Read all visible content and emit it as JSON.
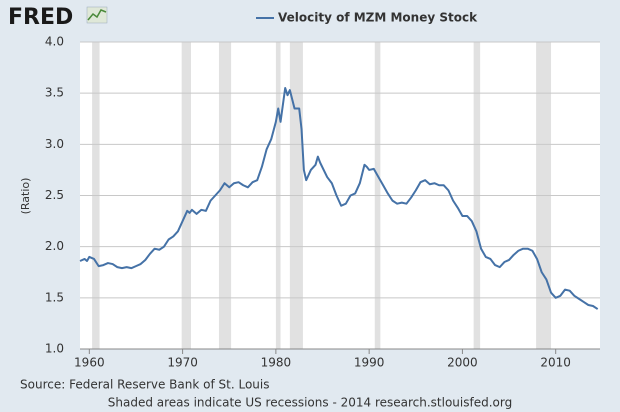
{
  "chart_data": {
    "type": "line",
    "logo": "FRED",
    "ylabel": "(Ratio)",
    "notes": [
      "Source: Federal Reserve Bank of St. Louis",
      "Shaded areas indicate US recessions - 2014 research.stlouisfed.org"
    ],
    "x": [
      1959.0,
      1959.5,
      1959.75,
      1960.0,
      1960.5,
      1961.0,
      1961.5,
      1962.0,
      1962.5,
      1963.0,
      1963.5,
      1964.0,
      1964.5,
      1965.0,
      1965.5,
      1966.0,
      1966.5,
      1967.0,
      1967.5,
      1968.0,
      1968.5,
      1969.0,
      1969.5,
      1970.0,
      1970.5,
      1970.75,
      1971.0,
      1971.5,
      1972.0,
      1972.5,
      1973.0,
      1973.5,
      1974.0,
      1974.5,
      1975.0,
      1975.5,
      1976.0,
      1976.5,
      1977.0,
      1977.5,
      1978.0,
      1978.5,
      1979.0,
      1979.5,
      1980.0,
      1980.25,
      1980.5,
      1981.0,
      1981.25,
      1981.5,
      1982.0,
      1982.5,
      1982.75,
      1983.0,
      1983.25,
      1983.75,
      1984.25,
      1984.5,
      1984.75,
      1985.5,
      1986.0,
      1986.5,
      1987.0,
      1987.5,
      1988.0,
      1988.5,
      1989.0,
      1989.5,
      1989.75,
      1990.0,
      1990.5,
      1991.0,
      1991.5,
      1992.0,
      1992.5,
      1993.0,
      1993.5,
      1994.0,
      1994.5,
      1995.0,
      1995.5,
      1996.0,
      1996.5,
      1997.0,
      1997.5,
      1998.0,
      1998.5,
      1999.0,
      1999.5,
      2000.0,
      2000.5,
      2001.0,
      2001.5,
      2002.0,
      2002.5,
      2003.0,
      2003.5,
      2004.0,
      2004.5,
      2005.0,
      2005.5,
      2006.0,
      2006.5,
      2007.0,
      2007.5,
      2008.0,
      2008.5,
      2009.0,
      2009.5,
      2010.0,
      2010.5,
      2011.0,
      2011.5,
      2012.0,
      2012.5,
      2013.0,
      2013.5,
      2014.0,
      2014.5
    ],
    "series": [
      {
        "name": "Velocity of MZM Money Stock",
        "color": "#4572a7",
        "values": [
          1.86,
          1.88,
          1.86,
          1.9,
          1.88,
          1.81,
          1.82,
          1.84,
          1.83,
          1.8,
          1.79,
          1.8,
          1.79,
          1.81,
          1.83,
          1.87,
          1.93,
          1.98,
          1.97,
          2.0,
          2.07,
          2.1,
          2.15,
          2.25,
          2.35,
          2.33,
          2.36,
          2.32,
          2.36,
          2.35,
          2.45,
          2.5,
          2.55,
          2.62,
          2.58,
          2.62,
          2.63,
          2.6,
          2.58,
          2.63,
          2.65,
          2.78,
          2.95,
          3.05,
          3.22,
          3.35,
          3.22,
          3.55,
          3.48,
          3.53,
          3.35,
          3.35,
          3.15,
          2.75,
          2.65,
          2.75,
          2.8,
          2.88,
          2.82,
          2.68,
          2.62,
          2.5,
          2.4,
          2.42,
          2.5,
          2.52,
          2.62,
          2.8,
          2.78,
          2.75,
          2.76,
          2.68,
          2.6,
          2.52,
          2.45,
          2.42,
          2.43,
          2.42,
          2.48,
          2.55,
          2.63,
          2.65,
          2.61,
          2.62,
          2.6,
          2.6,
          2.55,
          2.45,
          2.38,
          2.3,
          2.3,
          2.25,
          2.15,
          1.98,
          1.9,
          1.88,
          1.82,
          1.8,
          1.85,
          1.87,
          1.92,
          1.96,
          1.98,
          1.98,
          1.96,
          1.88,
          1.75,
          1.68,
          1.55,
          1.5,
          1.52,
          1.58,
          1.57,
          1.52,
          1.49,
          1.46,
          1.43,
          1.42,
          1.39
        ]
      }
    ],
    "recessions": [
      [
        1960.3,
        1961.1
      ],
      [
        1969.9,
        1970.9
      ],
      [
        1973.9,
        1975.2
      ],
      [
        1980.0,
        1980.5
      ],
      [
        1981.5,
        1982.9
      ],
      [
        1990.6,
        1991.2
      ],
      [
        2001.2,
        2001.9
      ],
      [
        2007.9,
        2009.5
      ]
    ],
    "recession_color": "#e1e1e1",
    "xlim": [
      1959,
      2014.75
    ],
    "xticks": [
      1960,
      1970,
      1980,
      1990,
      2000,
      2010
    ],
    "ylim": [
      1.0,
      4.0
    ],
    "yticks": [
      {
        "value": 1.0,
        "label": "1.0"
      },
      {
        "value": 1.5,
        "label": "1.5"
      },
      {
        "value": 2.0,
        "label": "2.0"
      },
      {
        "value": 2.5,
        "label": "2.5"
      },
      {
        "value": 3.0,
        "label": "3.0"
      },
      {
        "value": 3.5,
        "label": "3.5"
      },
      {
        "value": 4.0,
        "label": "4.0"
      }
    ],
    "grid": true
  }
}
